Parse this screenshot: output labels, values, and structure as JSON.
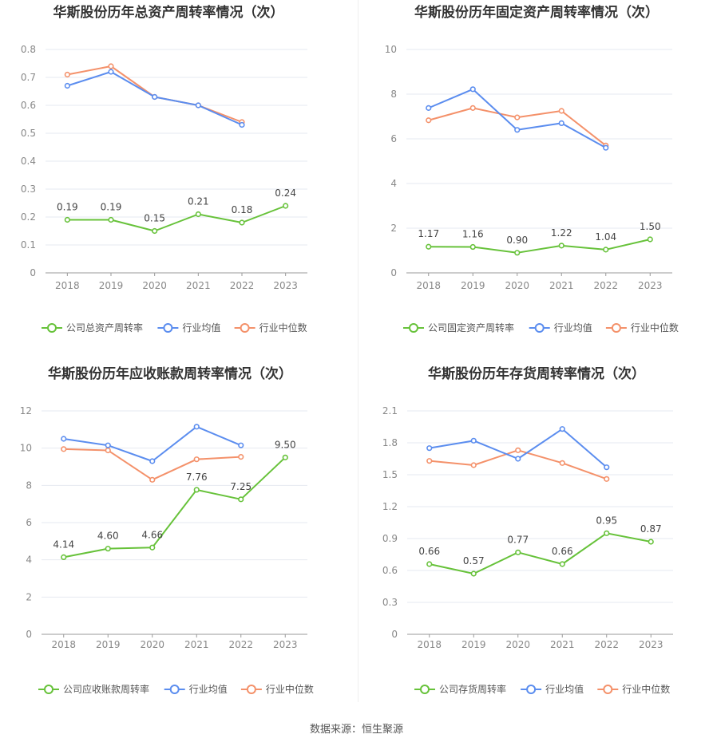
{
  "source_label": "数据来源：恒生聚源",
  "colors": {
    "company": "#67c23a",
    "avg": "#5b8def",
    "median": "#f4916a",
    "axis": "#999999",
    "grid": "#e6e9f0"
  },
  "chart_data": [
    {
      "type": "line",
      "title": "华斯股份历年总资产周转率情况（次）",
      "categories": [
        "2018",
        "2019",
        "2020",
        "2021",
        "2022",
        "2023"
      ],
      "ylim": [
        0,
        0.8
      ],
      "yticks": [
        "0",
        "0.1",
        "0.2",
        "0.3",
        "0.4",
        "0.5",
        "0.6",
        "0.7",
        "0.8"
      ],
      "grid": true,
      "legend_position": "bottom",
      "series": [
        {
          "name": "公司总资产周转率",
          "values": [
            0.19,
            0.19,
            0.15,
            0.21,
            0.18,
            0.24
          ],
          "labels": [
            "0.19",
            "0.19",
            "0.15",
            "0.21",
            "0.18",
            "0.24"
          ]
        },
        {
          "name": "行业均值",
          "values": [
            0.67,
            0.72,
            0.63,
            0.6,
            0.53,
            null
          ]
        },
        {
          "name": "行业中位数",
          "values": [
            0.71,
            0.74,
            0.63,
            0.6,
            0.54,
            null
          ]
        }
      ]
    },
    {
      "type": "line",
      "title": "华斯股份历年固定资产周转率情况（次）",
      "categories": [
        "2018",
        "2019",
        "2020",
        "2021",
        "2022",
        "2023"
      ],
      "ylim": [
        0,
        10
      ],
      "yticks": [
        "0",
        "2",
        "4",
        "6",
        "8",
        "10"
      ],
      "grid": true,
      "legend_position": "bottom",
      "series": [
        {
          "name": "公司固定资产周转率",
          "values": [
            1.17,
            1.16,
            0.9,
            1.22,
            1.04,
            1.5
          ],
          "labels": [
            "1.17",
            "1.16",
            "0.90",
            "1.22",
            "1.04",
            "1.50"
          ]
        },
        {
          "name": "行业均值",
          "values": [
            7.38,
            8.22,
            6.4,
            6.7,
            5.6,
            null
          ]
        },
        {
          "name": "行业中位数",
          "values": [
            6.83,
            7.38,
            6.96,
            7.25,
            5.7,
            null
          ]
        }
      ]
    },
    {
      "type": "line",
      "title": "华斯股份历年应收账款周转率情况（次）",
      "categories": [
        "2018",
        "2019",
        "2020",
        "2021",
        "2022",
        "2023"
      ],
      "ylim": [
        0,
        12
      ],
      "yticks": [
        "0",
        "2",
        "4",
        "6",
        "8",
        "10",
        "12"
      ],
      "grid": true,
      "legend_position": "bottom",
      "series": [
        {
          "name": "公司应收账款周转率",
          "values": [
            4.14,
            4.6,
            4.66,
            7.76,
            7.25,
            9.5
          ],
          "labels": [
            "4.14",
            "4.60",
            "4.66",
            "7.76",
            "7.25",
            "9.50"
          ]
        },
        {
          "name": "行业均值",
          "values": [
            10.5,
            10.15,
            9.3,
            11.15,
            10.15,
            null
          ]
        },
        {
          "name": "行业中位数",
          "values": [
            9.95,
            9.88,
            8.3,
            9.4,
            9.53,
            null
          ]
        }
      ]
    },
    {
      "type": "line",
      "title": "华斯股份历年存货周转率情况（次）",
      "categories": [
        "2018",
        "2019",
        "2020",
        "2021",
        "2022",
        "2023"
      ],
      "ylim": [
        0,
        2.1
      ],
      "yticks": [
        "0",
        "0.3",
        "0.6",
        "0.9",
        "1.2",
        "1.5",
        "1.8",
        "2.1"
      ],
      "grid": true,
      "legend_position": "bottom",
      "series": [
        {
          "name": "公司存货周转率",
          "values": [
            0.66,
            0.57,
            0.77,
            0.66,
            0.95,
            0.87
          ],
          "labels": [
            "0.66",
            "0.57",
            "0.77",
            "0.66",
            "0.95",
            "0.87"
          ]
        },
        {
          "name": "行业均值",
          "values": [
            1.75,
            1.82,
            1.65,
            1.93,
            1.57,
            null
          ]
        },
        {
          "name": "行业中位数",
          "values": [
            1.63,
            1.59,
            1.73,
            1.61,
            1.46,
            null
          ]
        }
      ]
    }
  ]
}
